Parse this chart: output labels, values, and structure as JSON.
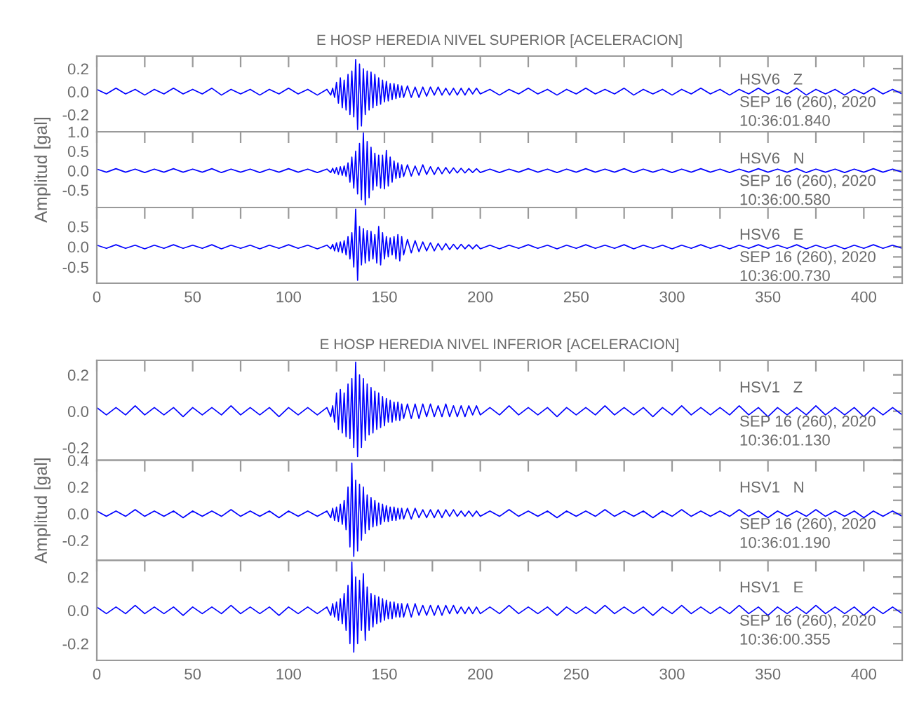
{
  "chart_data": [
    {
      "type": "line",
      "title": "E HOSP HEREDIA NIVEL SUPERIOR [ACELERACION]",
      "x": [
        0,
        5,
        10,
        15,
        20,
        25,
        30,
        35,
        40,
        45,
        50,
        55,
        60,
        65,
        70,
        75,
        80,
        85,
        90,
        95,
        100,
        105,
        110,
        115,
        120,
        122,
        123,
        124,
        125,
        126,
        127,
        128,
        129,
        130,
        131,
        132,
        133,
        134,
        135,
        136,
        137,
        138,
        139,
        140,
        141,
        142,
        143,
        144,
        145,
        146,
        147,
        148,
        149,
        150,
        151,
        152,
        153,
        154,
        155,
        156,
        157,
        158,
        159,
        160,
        162,
        164,
        166,
        168,
        170,
        172,
        174,
        176,
        178,
        180,
        182,
        184,
        186,
        188,
        190,
        192,
        194,
        196,
        198,
        200,
        205,
        210,
        215,
        220,
        225,
        230,
        235,
        240,
        245,
        250,
        255,
        260,
        265,
        270,
        275,
        280,
        285,
        290,
        295,
        300,
        305,
        310,
        315,
        320,
        325,
        330,
        335,
        340,
        345,
        350,
        355,
        360,
        365,
        370,
        375,
        380,
        385,
        390,
        395,
        400,
        405,
        410,
        415,
        420
      ],
      "series": [
        {
          "color": "#0000ff",
          "values": [
            0.02,
            -0.02,
            0.03,
            -0.02,
            0.02,
            -0.03,
            0.02,
            -0.02,
            0.03,
            -0.02,
            0.02,
            -0.02,
            0.03,
            -0.03,
            0.02,
            -0.02,
            0.02,
            -0.03,
            0.02,
            -0.02,
            0.03,
            -0.02,
            0.02,
            -0.03,
            0.02,
            -0.03,
            0.03,
            -0.05,
            0.08,
            -0.1,
            0.12,
            -0.14,
            0.1,
            -0.16,
            0.15,
            -0.2,
            0.18,
            -0.22,
            0.28,
            -0.33,
            0.24,
            -0.3,
            0.2,
            -0.2,
            0.18,
            -0.16,
            0.17,
            -0.14,
            0.15,
            -0.12,
            0.12,
            -0.11,
            0.1,
            -0.09,
            0.09,
            -0.08,
            0.07,
            -0.07,
            0.07,
            -0.06,
            0.06,
            -0.05,
            0.05,
            -0.05,
            0.05,
            -0.05,
            0.04,
            -0.05,
            0.04,
            -0.04,
            0.04,
            -0.03,
            0.04,
            -0.03,
            0.03,
            -0.03,
            0.03,
            -0.03,
            0.03,
            -0.03,
            0.03,
            -0.02,
            0.03,
            -0.02,
            0.02,
            -0.03,
            0.02,
            -0.02,
            0.03,
            -0.02,
            0.02,
            -0.03,
            0.02,
            -0.02,
            0.03,
            -0.02,
            0.02,
            -0.02,
            0.03,
            -0.03,
            0.02,
            -0.02,
            0.02,
            -0.03,
            0.02,
            -0.02,
            0.03,
            -0.02,
            0.02,
            -0.03,
            0.02,
            -0.02,
            0.03,
            -0.02,
            0.02,
            -0.02,
            0.03,
            -0.03,
            0.02,
            -0.02,
            0.02,
            -0.03,
            0.02,
            -0.02,
            0.03,
            -0.02,
            0.02,
            -0.02
          ]
        }
      ],
      "xlim": [
        0,
        420
      ],
      "xticks": [
        0,
        {
          "value": 25,
          "label": null
        },
        50,
        {
          "value": 75,
          "label": null
        },
        100,
        {
          "value": 125,
          "label": null
        },
        150,
        {
          "value": 175,
          "label": null
        },
        200,
        {
          "value": 225,
          "label": null
        },
        250,
        {
          "value": 275,
          "label": null
        },
        300,
        {
          "value": 325,
          "label": null
        },
        350,
        {
          "value": 375,
          "label": null
        },
        400
      ],
      "ylim": [
        -0.35,
        0.31
      ],
      "yticks": [
        {
          "value": -0.3,
          "label": null
        },
        -0.2,
        {
          "value": -0.1,
          "label": null
        },
        {
          "value": 0,
          "label": "0.0"
        },
        {
          "value": 0.1,
          "label": null
        },
        0.2
      ],
      "tick_labels": "y",
      "annotations": [
        "HSV6   Z",
        "SEP 16 (260), 2020",
        "10:36:01.840"
      ]
    },
    {
      "type": "line",
      "ylabel": "Amplitud [gal]",
      "x": [
        0,
        5,
        10,
        15,
        20,
        25,
        30,
        35,
        40,
        45,
        50,
        55,
        60,
        65,
        70,
        75,
        80,
        85,
        90,
        95,
        100,
        105,
        110,
        115,
        120,
        122,
        123,
        124,
        125,
        126,
        127,
        128,
        129,
        130,
        131,
        132,
        133,
        134,
        135,
        136,
        137,
        138,
        139,
        140,
        141,
        142,
        143,
        144,
        145,
        146,
        147,
        148,
        149,
        150,
        151,
        152,
        153,
        154,
        155,
        156,
        157,
        158,
        159,
        160,
        162,
        164,
        166,
        168,
        170,
        172,
        174,
        176,
        178,
        180,
        182,
        184,
        186,
        188,
        190,
        192,
        194,
        196,
        198,
        200,
        205,
        210,
        215,
        220,
        225,
        230,
        235,
        240,
        245,
        250,
        255,
        260,
        265,
        270,
        275,
        280,
        285,
        290,
        295,
        300,
        305,
        310,
        315,
        320,
        325,
        330,
        335,
        340,
        345,
        350,
        355,
        360,
        365,
        370,
        375,
        380,
        385,
        390,
        395,
        400,
        405,
        410,
        415,
        420
      ],
      "series": [
        {
          "color": "#0000ff",
          "values": [
            0.04,
            -0.04,
            0.05,
            -0.04,
            0.04,
            -0.05,
            0.04,
            -0.04,
            0.05,
            -0.04,
            0.04,
            -0.04,
            0.05,
            -0.05,
            0.04,
            -0.04,
            0.04,
            -0.05,
            0.04,
            -0.04,
            0.05,
            -0.04,
            0.04,
            -0.05,
            0.04,
            -0.05,
            0.06,
            -0.07,
            0.08,
            -0.1,
            0.1,
            -0.12,
            0.12,
            -0.15,
            0.2,
            -0.3,
            0.35,
            -0.45,
            0.5,
            -0.6,
            0.7,
            -0.75,
            0.97,
            -0.88,
            0.75,
            -0.7,
            0.6,
            -0.5,
            0.45,
            -0.4,
            0.4,
            -0.45,
            0.4,
            -0.47,
            0.52,
            -0.4,
            0.35,
            -0.3,
            0.25,
            -0.2,
            0.2,
            -0.18,
            0.15,
            -0.15,
            0.15,
            -0.14,
            0.12,
            -0.12,
            0.15,
            -0.1,
            0.1,
            -0.1,
            0.09,
            -0.08,
            0.08,
            -0.07,
            0.07,
            -0.06,
            0.06,
            -0.06,
            0.05,
            -0.05,
            0.05,
            -0.05,
            0.04,
            -0.05,
            0.04,
            -0.04,
            0.05,
            -0.04,
            0.04,
            -0.05,
            0.04,
            -0.04,
            0.05,
            -0.04,
            0.04,
            -0.04,
            0.05,
            -0.05,
            0.04,
            -0.04,
            0.04,
            -0.05,
            0.04,
            -0.04,
            0.05,
            -0.04,
            0.04,
            -0.05,
            0.04,
            -0.04,
            0.05,
            -0.04,
            0.04,
            -0.04,
            0.05,
            -0.05,
            0.04,
            -0.04,
            0.04,
            -0.05,
            0.04,
            -0.04,
            0.05,
            -0.04,
            0.04,
            -0.04
          ]
        }
      ],
      "xlim": [
        0,
        420
      ],
      "xticks": [
        0,
        {
          "value": 25,
          "label": null
        },
        50,
        {
          "value": 75,
          "label": null
        },
        100,
        {
          "value": 125,
          "label": null
        },
        150,
        {
          "value": 175,
          "label": null
        },
        200,
        {
          "value": 225,
          "label": null
        },
        250,
        {
          "value": 275,
          "label": null
        },
        300,
        {
          "value": 325,
          "label": null
        },
        350,
        {
          "value": 375,
          "label": null
        },
        400
      ],
      "ylim": [
        -0.95,
        1.0
      ],
      "yticks": [
        {
          "value": -0.75,
          "label": null
        },
        -0.5,
        {
          "value": -0.25,
          "label": null
        },
        {
          "value": 0,
          "label": "0.0"
        },
        {
          "value": 0.25,
          "label": null
        },
        0.5,
        {
          "value": 0.75,
          "label": null
        },
        {
          "value": 1,
          "label": "1.0"
        }
      ],
      "tick_labels": "y",
      "annotations": [
        "HSV6   N",
        "SEP 16 (260), 2020",
        "10:36:00.580"
      ]
    },
    {
      "type": "line",
      "x": [
        0,
        5,
        10,
        15,
        20,
        25,
        30,
        35,
        40,
        45,
        50,
        55,
        60,
        65,
        70,
        75,
        80,
        85,
        90,
        95,
        100,
        105,
        110,
        115,
        120,
        122,
        123,
        124,
        125,
        126,
        127,
        128,
        129,
        130,
        131,
        132,
        133,
        134,
        135,
        136,
        137,
        138,
        139,
        140,
        141,
        142,
        143,
        144,
        145,
        146,
        147,
        148,
        149,
        150,
        151,
        152,
        153,
        154,
        155,
        156,
        157,
        158,
        159,
        160,
        162,
        164,
        166,
        168,
        170,
        172,
        174,
        176,
        178,
        180,
        182,
        184,
        186,
        188,
        190,
        192,
        194,
        196,
        198,
        200,
        205,
        210,
        215,
        220,
        225,
        230,
        235,
        240,
        245,
        250,
        255,
        260,
        265,
        270,
        275,
        280,
        285,
        290,
        295,
        300,
        305,
        310,
        315,
        320,
        325,
        330,
        335,
        340,
        345,
        350,
        355,
        360,
        365,
        370,
        375,
        380,
        385,
        390,
        395,
        400,
        405,
        410,
        415,
        420
      ],
      "series": [
        {
          "color": "#0000ff",
          "values": [
            0.04,
            -0.04,
            0.05,
            -0.04,
            0.04,
            -0.05,
            0.04,
            -0.04,
            0.05,
            -0.04,
            0.04,
            -0.04,
            0.05,
            -0.05,
            0.04,
            -0.04,
            0.04,
            -0.05,
            0.04,
            -0.04,
            0.05,
            -0.04,
            0.04,
            -0.05,
            0.04,
            -0.05,
            0.06,
            -0.1,
            0.1,
            -0.12,
            0.12,
            -0.15,
            0.15,
            -0.2,
            0.25,
            -0.3,
            0.35,
            -0.5,
            0.93,
            -0.83,
            0.5,
            -0.45,
            0.45,
            -0.4,
            0.4,
            -0.35,
            0.38,
            -0.3,
            0.3,
            -0.4,
            0.5,
            -0.45,
            0.35,
            -0.3,
            0.25,
            -0.25,
            0.22,
            -0.2,
            0.25,
            -0.3,
            0.3,
            -0.35,
            0.25,
            -0.2,
            0.18,
            -0.15,
            0.15,
            -0.12,
            0.12,
            -0.1,
            0.1,
            -0.1,
            0.08,
            -0.08,
            0.08,
            -0.07,
            0.06,
            -0.06,
            0.06,
            -0.05,
            0.05,
            -0.05,
            0.05,
            -0.05,
            0.04,
            -0.05,
            0.04,
            -0.04,
            0.05,
            -0.04,
            0.04,
            -0.05,
            0.04,
            -0.04,
            0.05,
            -0.04,
            0.04,
            -0.04,
            0.05,
            -0.05,
            0.04,
            -0.04,
            0.04,
            -0.05,
            0.04,
            -0.04,
            0.05,
            -0.04,
            0.04,
            -0.05,
            0.04,
            -0.04,
            0.05,
            -0.04,
            0.04,
            -0.04,
            0.05,
            -0.05,
            0.04,
            -0.04,
            0.04,
            -0.05,
            0.04,
            -0.04,
            0.05,
            -0.04,
            0.04,
            -0.04
          ]
        }
      ],
      "xlim": [
        0,
        420
      ],
      "xticks": [
        0,
        {
          "value": 25,
          "label": null
        },
        50,
        {
          "value": 75,
          "label": null
        },
        100,
        {
          "value": 125,
          "label": null
        },
        150,
        {
          "value": 175,
          "label": null
        },
        200,
        {
          "value": 225,
          "label": null
        },
        250,
        {
          "value": 275,
          "label": null
        },
        300,
        {
          "value": 325,
          "label": null
        },
        350,
        {
          "value": 375,
          "label": null
        },
        400
      ],
      "ylim": [
        -0.9,
        0.97
      ],
      "yticks": [
        {
          "value": -0.75,
          "label": null
        },
        -0.5,
        {
          "value": -0.25,
          "label": null
        },
        {
          "value": 0,
          "label": "0.0"
        },
        {
          "value": 0.25,
          "label": null
        },
        0.5,
        {
          "value": 0.75,
          "label": null
        }
      ],
      "annotations": [
        "HSV6   E",
        "SEP 16 (260), 2020",
        "10:36:00.730"
      ]
    },
    {
      "type": "line",
      "title": "E HOSP HEREDIA NIVEL INFERIOR [ACELERACION]",
      "x": [
        0,
        5,
        10,
        15,
        20,
        25,
        30,
        35,
        40,
        45,
        50,
        55,
        60,
        65,
        70,
        75,
        80,
        85,
        90,
        95,
        100,
        105,
        110,
        115,
        120,
        122,
        123,
        124,
        125,
        126,
        127,
        128,
        129,
        130,
        131,
        132,
        133,
        134,
        135,
        136,
        137,
        138,
        139,
        140,
        141,
        142,
        143,
        144,
        145,
        146,
        147,
        148,
        149,
        150,
        151,
        152,
        153,
        154,
        155,
        156,
        157,
        158,
        159,
        160,
        162,
        164,
        166,
        168,
        170,
        172,
        174,
        176,
        178,
        180,
        182,
        184,
        186,
        188,
        190,
        192,
        194,
        196,
        198,
        200,
        205,
        210,
        215,
        220,
        225,
        230,
        235,
        240,
        245,
        250,
        255,
        260,
        265,
        270,
        275,
        280,
        285,
        290,
        295,
        300,
        305,
        310,
        315,
        320,
        325,
        330,
        335,
        340,
        345,
        350,
        355,
        360,
        365,
        370,
        375,
        380,
        385,
        390,
        395,
        400,
        405,
        410,
        415,
        420
      ],
      "series": [
        {
          "color": "#0000ff",
          "values": [
            0.02,
            -0.02,
            0.02,
            -0.02,
            0.03,
            -0.02,
            0.02,
            -0.02,
            0.02,
            -0.03,
            0.02,
            -0.02,
            0.02,
            -0.02,
            0.03,
            -0.02,
            0.02,
            -0.02,
            0.02,
            -0.03,
            0.02,
            -0.02,
            0.02,
            -0.02,
            0.02,
            -0.03,
            0.03,
            -0.06,
            0.1,
            -0.1,
            0.12,
            -0.12,
            0.1,
            -0.14,
            0.15,
            -0.15,
            0.18,
            -0.2,
            0.27,
            -0.25,
            0.2,
            -0.2,
            0.18,
            -0.16,
            0.15,
            -0.13,
            0.13,
            -0.12,
            0.11,
            -0.1,
            0.1,
            -0.09,
            0.08,
            -0.08,
            0.07,
            -0.06,
            0.06,
            -0.06,
            0.05,
            -0.05,
            0.05,
            -0.05,
            0.04,
            -0.04,
            0.04,
            -0.04,
            0.04,
            -0.04,
            0.04,
            -0.03,
            0.04,
            -0.03,
            0.03,
            -0.03,
            0.04,
            -0.03,
            0.03,
            -0.03,
            0.03,
            -0.03,
            0.03,
            -0.02,
            0.03,
            -0.02,
            0.02,
            -0.02,
            0.03,
            -0.02,
            0.02,
            -0.02,
            0.02,
            -0.03,
            0.02,
            -0.02,
            0.02,
            -0.02,
            0.03,
            -0.02,
            0.02,
            -0.02,
            0.02,
            -0.03,
            0.02,
            -0.02,
            0.03,
            -0.02,
            0.02,
            -0.02,
            0.02,
            -0.02,
            0.03,
            -0.02,
            0.02,
            -0.03,
            0.02,
            -0.02,
            0.02,
            -0.02,
            0.03,
            -0.02,
            0.02,
            -0.02,
            0.02,
            -0.03,
            0.02,
            -0.02,
            0.02,
            -0.02
          ]
        }
      ],
      "xlim": [
        0,
        420
      ],
      "xticks": [
        0,
        {
          "value": 25,
          "label": null
        },
        50,
        {
          "value": 75,
          "label": null
        },
        100,
        {
          "value": 125,
          "label": null
        },
        150,
        {
          "value": 175,
          "label": null
        },
        200,
        {
          "value": 225,
          "label": null
        },
        250,
        {
          "value": 275,
          "label": null
        },
        300,
        {
          "value": 325,
          "label": null
        },
        350,
        {
          "value": 375,
          "label": null
        },
        400
      ],
      "ylim": [
        -0.27,
        0.28
      ],
      "yticks": [
        -0.2,
        {
          "value": -0.1,
          "label": null
        },
        {
          "value": 0,
          "label": "0.0"
        },
        {
          "value": 0.1,
          "label": null
        },
        0.2
      ],
      "tick_labels": "y",
      "annotations": [
        "HSV1   Z",
        "SEP 16 (260), 2020",
        "10:36:01.130"
      ]
    },
    {
      "type": "line",
      "ylabel": "Amplitud [gal]",
      "x": [
        0,
        5,
        10,
        15,
        20,
        25,
        30,
        35,
        40,
        45,
        50,
        55,
        60,
        65,
        70,
        75,
        80,
        85,
        90,
        95,
        100,
        105,
        110,
        115,
        120,
        122,
        123,
        124,
        125,
        126,
        127,
        128,
        129,
        130,
        131,
        132,
        133,
        134,
        135,
        136,
        137,
        138,
        139,
        140,
        141,
        142,
        143,
        144,
        145,
        146,
        147,
        148,
        149,
        150,
        151,
        152,
        153,
        154,
        155,
        156,
        157,
        158,
        159,
        160,
        162,
        164,
        166,
        168,
        170,
        172,
        174,
        176,
        178,
        180,
        182,
        184,
        186,
        188,
        190,
        192,
        194,
        196,
        198,
        200,
        205,
        210,
        215,
        220,
        225,
        230,
        235,
        240,
        245,
        250,
        255,
        260,
        265,
        270,
        275,
        280,
        285,
        290,
        295,
        300,
        305,
        310,
        315,
        320,
        325,
        330,
        335,
        340,
        345,
        350,
        355,
        360,
        365,
        370,
        375,
        380,
        385,
        390,
        395,
        400,
        405,
        410,
        415,
        420
      ],
      "series": [
        {
          "color": "#0000ff",
          "values": [
            0.02,
            -0.02,
            0.02,
            -0.02,
            0.03,
            -0.02,
            0.02,
            -0.02,
            0.02,
            -0.03,
            0.02,
            -0.02,
            0.02,
            -0.02,
            0.03,
            -0.02,
            0.02,
            -0.02,
            0.02,
            -0.03,
            0.02,
            -0.02,
            0.02,
            -0.02,
            0.02,
            -0.03,
            0.04,
            -0.05,
            0.05,
            -0.06,
            0.07,
            -0.08,
            0.1,
            -0.12,
            0.2,
            -0.25,
            0.38,
            -0.32,
            0.25,
            -0.28,
            0.22,
            -0.2,
            0.2,
            -0.15,
            0.14,
            -0.12,
            0.12,
            -0.1,
            0.1,
            -0.09,
            0.08,
            -0.08,
            0.07,
            -0.06,
            0.06,
            -0.06,
            0.05,
            -0.05,
            0.05,
            -0.05,
            0.04,
            -0.04,
            0.04,
            -0.04,
            0.04,
            -0.04,
            0.04,
            -0.03,
            0.03,
            -0.03,
            0.03,
            -0.03,
            0.03,
            -0.03,
            0.03,
            -0.02,
            0.03,
            -0.02,
            0.02,
            -0.02,
            0.02,
            -0.02,
            0.02,
            -0.02,
            0.02,
            -0.02,
            0.03,
            -0.02,
            0.02,
            -0.02,
            0.02,
            -0.03,
            0.02,
            -0.02,
            0.02,
            -0.02,
            0.03,
            -0.02,
            0.02,
            -0.02,
            0.02,
            -0.03,
            0.02,
            -0.02,
            0.03,
            -0.02,
            0.02,
            -0.02,
            0.02,
            -0.02,
            0.03,
            -0.02,
            0.02,
            -0.03,
            0.02,
            -0.02,
            0.02,
            -0.02,
            0.03,
            -0.02,
            0.02,
            -0.02,
            0.02,
            -0.03,
            0.02,
            -0.02,
            0.02,
            -0.02
          ]
        }
      ],
      "xlim": [
        0,
        420
      ],
      "xticks": [
        0,
        {
          "value": 25,
          "label": null
        },
        50,
        {
          "value": 75,
          "label": null
        },
        100,
        {
          "value": 125,
          "label": null
        },
        150,
        {
          "value": 175,
          "label": null
        },
        200,
        {
          "value": 225,
          "label": null
        },
        250,
        {
          "value": 275,
          "label": null
        },
        300,
        {
          "value": 325,
          "label": null
        },
        350,
        {
          "value": 375,
          "label": null
        },
        400
      ],
      "ylim": [
        -0.35,
        0.4
      ],
      "yticks": [
        {
          "value": -0.3,
          "label": null
        },
        -0.2,
        {
          "value": -0.1,
          "label": null
        },
        {
          "value": 0,
          "label": "0.0"
        },
        {
          "value": 0.1,
          "label": null
        },
        0.2,
        {
          "value": 0.3,
          "label": null
        },
        0.4
      ],
      "tick_labels": "y",
      "annotations": [
        "HSV1   N",
        "SEP 16 (260), 2020",
        "10:36:01.190"
      ]
    },
    {
      "type": "line",
      "x": [
        0,
        5,
        10,
        15,
        20,
        25,
        30,
        35,
        40,
        45,
        50,
        55,
        60,
        65,
        70,
        75,
        80,
        85,
        90,
        95,
        100,
        105,
        110,
        115,
        120,
        122,
        123,
        124,
        125,
        126,
        127,
        128,
        129,
        130,
        131,
        132,
        133,
        134,
        135,
        136,
        137,
        138,
        139,
        140,
        141,
        142,
        143,
        144,
        145,
        146,
        147,
        148,
        149,
        150,
        151,
        152,
        153,
        154,
        155,
        156,
        157,
        158,
        159,
        160,
        162,
        164,
        166,
        168,
        170,
        172,
        174,
        176,
        178,
        180,
        182,
        184,
        186,
        188,
        190,
        192,
        194,
        196,
        198,
        200,
        205,
        210,
        215,
        220,
        225,
        230,
        235,
        240,
        245,
        250,
        255,
        260,
        265,
        270,
        275,
        280,
        285,
        290,
        295,
        300,
        305,
        310,
        315,
        320,
        325,
        330,
        335,
        340,
        345,
        350,
        355,
        360,
        365,
        370,
        375,
        380,
        385,
        390,
        395,
        400,
        405,
        410,
        415,
        420
      ],
      "series": [
        {
          "color": "#0000ff",
          "values": [
            0.02,
            -0.02,
            0.02,
            -0.02,
            0.03,
            -0.02,
            0.02,
            -0.02,
            0.02,
            -0.03,
            0.02,
            -0.02,
            0.02,
            -0.02,
            0.03,
            -0.02,
            0.02,
            -0.02,
            0.02,
            -0.03,
            0.02,
            -0.02,
            0.02,
            -0.02,
            0.02,
            -0.03,
            0.04,
            -0.04,
            0.05,
            -0.06,
            0.07,
            -0.08,
            0.1,
            -0.12,
            0.15,
            -0.2,
            0.29,
            -0.25,
            0.2,
            -0.2,
            0.18,
            -0.12,
            0.22,
            -0.18,
            0.14,
            -0.12,
            0.1,
            -0.1,
            0.09,
            -0.08,
            0.08,
            -0.07,
            0.07,
            -0.06,
            0.06,
            -0.05,
            0.05,
            -0.05,
            0.05,
            -0.04,
            0.04,
            -0.04,
            0.04,
            -0.04,
            0.04,
            -0.04,
            0.04,
            -0.03,
            0.03,
            -0.03,
            0.03,
            -0.03,
            0.03,
            -0.03,
            0.03,
            -0.02,
            0.03,
            -0.02,
            0.02,
            -0.02,
            0.02,
            -0.02,
            0.02,
            -0.02,
            0.02,
            -0.02,
            0.03,
            -0.02,
            0.02,
            -0.02,
            0.02,
            -0.03,
            0.02,
            -0.02,
            0.02,
            -0.02,
            0.03,
            -0.02,
            0.02,
            -0.02,
            0.02,
            -0.03,
            0.02,
            -0.02,
            0.03,
            -0.02,
            0.02,
            -0.02,
            0.02,
            -0.02,
            0.03,
            -0.02,
            0.02,
            -0.03,
            0.02,
            -0.02,
            0.02,
            -0.02,
            0.03,
            -0.02,
            0.02,
            -0.02,
            0.02,
            -0.03,
            0.02,
            -0.02,
            0.02,
            -0.02
          ]
        }
      ],
      "xlim": [
        0,
        420
      ],
      "xticks": [
        0,
        {
          "value": 25,
          "label": null
        },
        50,
        {
          "value": 75,
          "label": null
        },
        100,
        {
          "value": 125,
          "label": null
        },
        150,
        {
          "value": 175,
          "label": null
        },
        200,
        {
          "value": 225,
          "label": null
        },
        250,
        {
          "value": 275,
          "label": null
        },
        300,
        {
          "value": 325,
          "label": null
        },
        350,
        {
          "value": 375,
          "label": null
        },
        400
      ],
      "ylim": [
        -0.3,
        0.3
      ],
      "yticks": [
        -0.2,
        {
          "value": -0.1,
          "label": null
        },
        {
          "value": 0,
          "label": "0.0"
        },
        {
          "value": 0.1,
          "label": null
        },
        0.2
      ],
      "annotations": [
        "HSV1   E",
        "SEP 16 (260), 2020",
        "10:36:00.355"
      ]
    }
  ]
}
